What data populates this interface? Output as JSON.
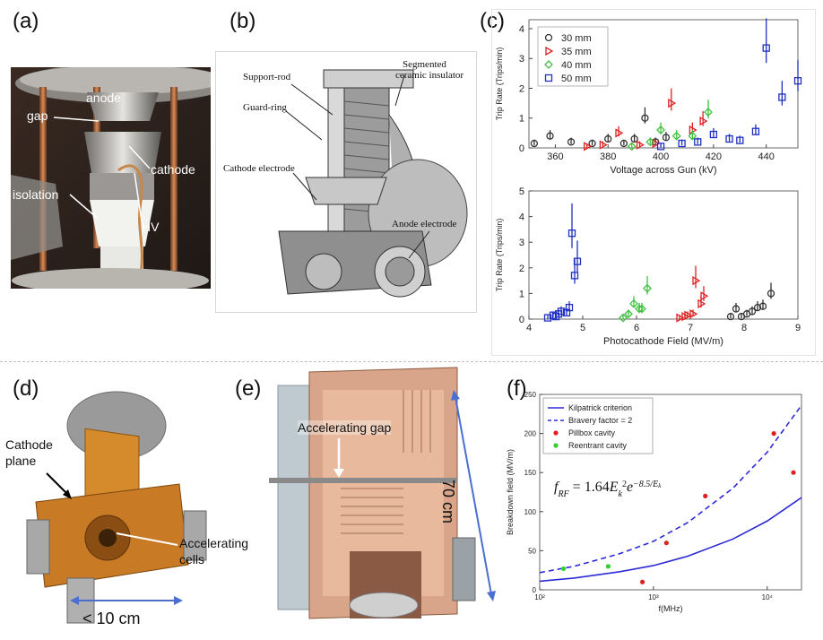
{
  "panels": {
    "a": {
      "letter": "(a)",
      "labels": {
        "anode": "anode",
        "gap": "gap",
        "cathode": "cathode",
        "isolation": "isolation",
        "hv": "HV"
      }
    },
    "b": {
      "letter": "(b)",
      "labels": {
        "support_rod": "Support-rod",
        "segmented_1": "Segmented",
        "segmented_2": "ceramic insulator",
        "guard_ring": "Guard-ring",
        "cathode_electrode": "Cathode electrode",
        "anode_electrode": "Anode electrode"
      }
    },
    "c": {
      "letter": "(c)"
    },
    "d": {
      "letter": "(d)",
      "labels": {
        "cathode_1": "Cathode",
        "cathode_2": "plane",
        "accel_1": "Accelerating",
        "accel_2": "cells",
        "scale": "< 10 cm"
      }
    },
    "e": {
      "letter": "(e)",
      "labels": {
        "gap": "Accelerating gap",
        "scale": "70 cm"
      }
    },
    "f": {
      "letter": "(f)"
    }
  },
  "colors": {
    "s30": "#333333",
    "s35": "#e02020",
    "s40": "#40c040",
    "s50": "#2030c0",
    "kilpatrick": "#2b2bd6",
    "copper": "#c87a50",
    "orange": "#d9822b"
  },
  "chart_data": [
    {
      "type": "scatter",
      "xlabel": "Voltage across Gun (kV)",
      "ylabel": "Trip Rate (Trips/min)",
      "xlim": [
        350,
        452
      ],
      "ylim": [
        0,
        4.3
      ],
      "xticks": [
        "360",
        "380",
        "400",
        "420",
        "440"
      ],
      "yticks": [
        "0",
        "1",
        "2",
        "3",
        "4"
      ],
      "legend_position": "top-left",
      "series": [
        {
          "name": "30 mm",
          "marker": "circle",
          "points": [
            [
              352,
              0.15
            ],
            [
              358,
              0.4
            ],
            [
              366,
              0.2
            ],
            [
              374,
              0.15
            ],
            [
              380,
              0.3
            ],
            [
              386,
              0.15
            ],
            [
              390,
              0.3
            ],
            [
              394,
              1.0
            ],
            [
              398,
              0.2
            ],
            [
              402,
              0.35
            ]
          ]
        },
        {
          "name": "35 mm",
          "marker": "triangle",
          "points": [
            [
              372,
              0.05
            ],
            [
              378,
              0.1
            ],
            [
              384,
              0.5
            ],
            [
              392,
              0.1
            ],
            [
              398,
              0.15
            ],
            [
              404,
              1.5
            ],
            [
              412,
              0.6
            ],
            [
              416,
              0.9
            ]
          ]
        },
        {
          "name": "40 mm",
          "marker": "diamond",
          "points": [
            [
              389,
              0.05
            ],
            [
              396,
              0.2
            ],
            [
              400,
              0.6
            ],
            [
              406,
              0.4
            ],
            [
              412,
              0.4
            ],
            [
              418,
              1.2
            ]
          ]
        },
        {
          "name": "50 mm",
          "marker": "square",
          "points": [
            [
              400,
              0.05
            ],
            [
              408,
              0.15
            ],
            [
              414,
              0.2
            ],
            [
              420,
              0.45
            ],
            [
              426,
              0.3
            ],
            [
              430,
              0.25
            ],
            [
              436,
              0.55
            ],
            [
              440,
              3.35
            ],
            [
              446,
              1.7
            ],
            [
              452,
              2.25
            ]
          ]
        }
      ]
    },
    {
      "type": "scatter",
      "xlabel": "Photocathode Field (MV/m)",
      "ylabel": "Trip Rate (Trips/min)",
      "xlim": [
        4,
        9
      ],
      "ylim": [
        0,
        5
      ],
      "xticks": [
        "4",
        "5",
        "6",
        "7",
        "8",
        "9"
      ],
      "yticks": [
        "0",
        "1",
        "2",
        "3",
        "4",
        "5"
      ],
      "series": [
        {
          "name": "30 mm",
          "points": [
            [
              7.75,
              0.1
            ],
            [
              7.85,
              0.4
            ],
            [
              7.95,
              0.1
            ],
            [
              8.05,
              0.2
            ],
            [
              8.15,
              0.3
            ],
            [
              8.25,
              0.45
            ],
            [
              8.35,
              0.5
            ],
            [
              8.5,
              1.0
            ]
          ]
        },
        {
          "name": "35 mm",
          "points": [
            [
              6.8,
              0.05
            ],
            [
              6.9,
              0.1
            ],
            [
              6.95,
              0.15
            ],
            [
              7.05,
              0.2
            ],
            [
              7.1,
              1.5
            ],
            [
              7.2,
              0.6
            ],
            [
              7.25,
              0.9
            ]
          ]
        },
        {
          "name": "40 mm",
          "points": [
            [
              5.75,
              0.05
            ],
            [
              5.85,
              0.2
            ],
            [
              5.95,
              0.6
            ],
            [
              6.05,
              0.4
            ],
            [
              6.1,
              0.4
            ],
            [
              6.2,
              1.2
            ]
          ]
        },
        {
          "name": "50 mm",
          "points": [
            [
              4.35,
              0.05
            ],
            [
              4.45,
              0.15
            ],
            [
              4.5,
              0.1
            ],
            [
              4.55,
              0.2
            ],
            [
              4.6,
              0.3
            ],
            [
              4.7,
              0.25
            ],
            [
              4.75,
              0.45
            ],
            [
              4.8,
              3.35
            ],
            [
              4.85,
              1.7
            ],
            [
              4.9,
              2.25
            ]
          ]
        }
      ]
    },
    {
      "type": "line",
      "xlabel": "f(MHz)",
      "ylabel": "Breakdown field (MV/m)",
      "xscale": "log",
      "xlim": [
        100,
        20000
      ],
      "ylim": [
        0,
        250
      ],
      "xticks": [
        {
          "value": 100,
          "label": "10²"
        },
        {
          "value": 1000,
          "label": "10³"
        },
        {
          "value": 10000,
          "label": "10⁴"
        }
      ],
      "yticks": [
        "0",
        "50",
        "100",
        "150",
        "200",
        "250"
      ],
      "equation": "f_RF = 1.64 E_k^2 e^{-8.5/E_k}",
      "series": [
        {
          "name": "Kilpatrick criterion",
          "style": "solid",
          "x": [
            100,
            200,
            500,
            1000,
            2000,
            5000,
            10000,
            20000
          ],
          "y": [
            11,
            15,
            23,
            31,
            43,
            65,
            88,
            118
          ]
        },
        {
          "name": "Bravery factor = 2",
          "style": "dashed",
          "x": [
            100,
            200,
            500,
            1000,
            2000,
            5000,
            10000,
            20000
          ],
          "y": [
            22,
            30,
            46,
            62,
            86,
            130,
            176,
            236
          ]
        },
        {
          "name": "Pillbox cavity",
          "marker": "red-dot",
          "points": [
            [
              800,
              10
            ],
            [
              1300,
              60
            ],
            [
              2856,
              120
            ],
            [
              11424,
              200
            ],
            [
              17000,
              150
            ]
          ]
        },
        {
          "name": "Reentrant cavity",
          "marker": "green-dot",
          "points": [
            [
              162,
              27
            ],
            [
              400,
              30
            ]
          ]
        }
      ]
    }
  ]
}
